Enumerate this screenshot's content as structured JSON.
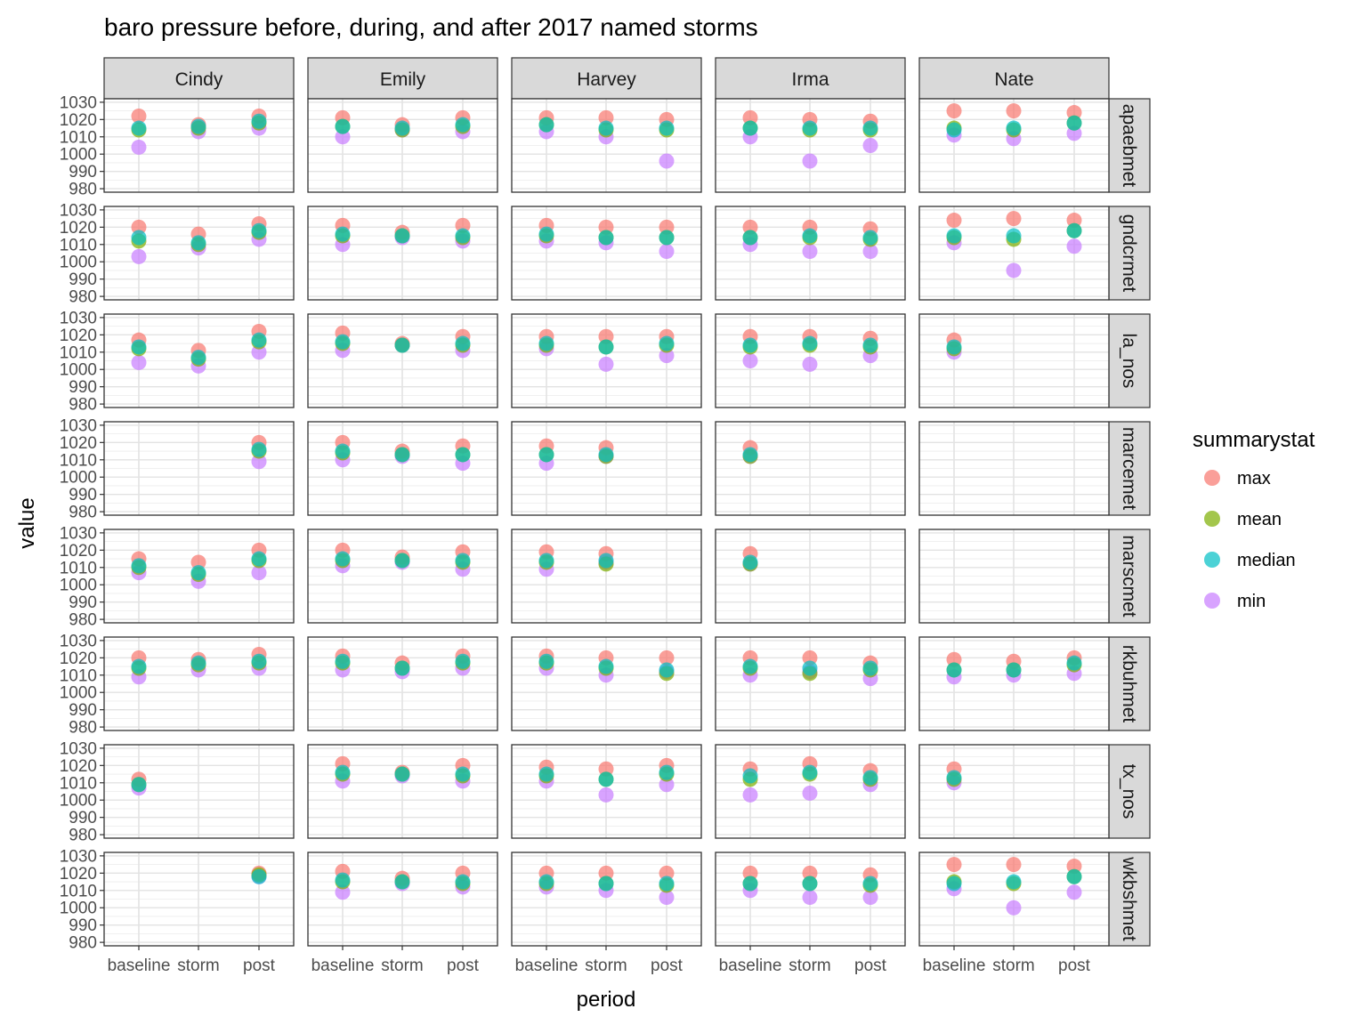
{
  "chart_data": {
    "type": "scatter",
    "title": "baro pressure before, during, and after 2017 named storms",
    "xlabel": "period",
    "ylabel": "value",
    "x_categories": [
      "baseline",
      "storm",
      "post"
    ],
    "y_ticks": [
      980,
      990,
      1000,
      1010,
      1020,
      1030
    ],
    "ylim": [
      978,
      1032
    ],
    "grid": true,
    "legend": {
      "title": "summarystat",
      "placement": "right",
      "entries": [
        {
          "name": "max",
          "color": "#F8766D"
        },
        {
          "name": "mean",
          "color": "#7CAE00"
        },
        {
          "name": "median",
          "color": "#00BFC4"
        },
        {
          "name": "min",
          "color": "#C77CFF"
        }
      ]
    },
    "storms": [
      "Cindy",
      "Emily",
      "Harvey",
      "Irma",
      "Nate"
    ],
    "stations": [
      "apaebmet",
      "gndcrmet",
      "la_nos",
      "marcemet",
      "marscmet",
      "rkbuhmet",
      "tx_nos",
      "wkbshmet"
    ],
    "stat_order": [
      "max",
      "mean",
      "median",
      "min"
    ],
    "values": {
      "apaebmet": {
        "Cindy": [
          [
            1022,
            1014,
            1015,
            1004
          ],
          [
            1017,
            1015,
            1016,
            1013
          ],
          [
            1022,
            1018,
            1019,
            1015
          ]
        ],
        "Emily": [
          [
            1021,
            1016,
            1016,
            1010
          ],
          [
            1017,
            1014,
            1015,
            1014
          ],
          [
            1021,
            1016,
            1017,
            1013
          ]
        ],
        "Harvey": [
          [
            1021,
            1017,
            1017,
            1013
          ],
          [
            1021,
            1014,
            1015,
            1010
          ],
          [
            1020,
            1014,
            1015,
            996
          ]
        ],
        "Irma": [
          [
            1021,
            1015,
            1015,
            1010
          ],
          [
            1020,
            1014,
            1015,
            996
          ],
          [
            1019,
            1014,
            1015,
            1005
          ]
        ],
        "Nate": [
          [
            1025,
            1015,
            1014,
            1011
          ],
          [
            1025,
            1014,
            1015,
            1009
          ],
          [
            1024,
            1018,
            1018,
            1012
          ]
        ]
      },
      "gndcrmet": {
        "Cindy": [
          [
            1020,
            1012,
            1014,
            1003
          ],
          [
            1016,
            1010,
            1011,
            1008
          ],
          [
            1022,
            1017,
            1018,
            1013
          ]
        ],
        "Emily": [
          [
            1021,
            1015,
            1016,
            1010
          ],
          [
            1017,
            1015,
            1015,
            1014
          ],
          [
            1021,
            1014,
            1015,
            1012
          ]
        ],
        "Harvey": [
          [
            1021,
            1015,
            1016,
            1012
          ],
          [
            1020,
            1014,
            1014,
            1011
          ],
          [
            1020,
            1014,
            1014,
            1006
          ]
        ],
        "Irma": [
          [
            1020,
            1014,
            1014,
            1010
          ],
          [
            1020,
            1014,
            1015,
            1006
          ],
          [
            1019,
            1013,
            1014,
            1006
          ]
        ],
        "Nate": [
          [
            1024,
            1014,
            1015,
            1011
          ],
          [
            1025,
            1013,
            1015,
            995
          ],
          [
            1024,
            1018,
            1018,
            1009
          ]
        ]
      },
      "la_nos": {
        "Cindy": [
          [
            1017,
            1012,
            1013,
            1004
          ],
          [
            1011,
            1006,
            1007,
            1002
          ],
          [
            1022,
            1016,
            1017,
            1010
          ]
        ],
        "Emily": [
          [
            1021,
            1015,
            1016,
            1011
          ],
          [
            1015,
            1014,
            1014,
            1014
          ],
          [
            1019,
            1014,
            1015,
            1011
          ]
        ],
        "Harvey": [
          [
            1019,
            1014,
            1015,
            1012
          ],
          [
            1019,
            1013,
            1013,
            1003
          ],
          [
            1019,
            1014,
            1015,
            1008
          ]
        ],
        "Irma": [
          [
            1019,
            1013,
            1014,
            1005
          ],
          [
            1019,
            1014,
            1015,
            1003
          ],
          [
            1018,
            1013,
            1014,
            1008
          ]
        ],
        "Nate": [
          [
            1017,
            1012,
            1013,
            1010
          ],
          null,
          null
        ]
      },
      "marcemet": {
        "Cindy": [
          null,
          null,
          [
            1020,
            1015,
            1016,
            1009
          ]
        ],
        "Emily": [
          [
            1020,
            1014,
            1015,
            1010
          ],
          [
            1015,
            1013,
            1013,
            1012
          ],
          [
            1018,
            1013,
            1013,
            1008
          ]
        ],
        "Harvey": [
          [
            1018,
            1013,
            1013,
            1008
          ],
          [
            1017,
            1012,
            1013,
            1012
          ],
          null
        ],
        "Irma": [
          [
            1017,
            1012,
            1013,
            1012
          ],
          null,
          null
        ],
        "Nate": [
          null,
          null,
          null
        ]
      },
      "marscmet": {
        "Cindy": [
          [
            1015,
            1010,
            1011,
            1007
          ],
          [
            1013,
            1006,
            1007,
            1002
          ],
          [
            1020,
            1014,
            1015,
            1007
          ]
        ],
        "Emily": [
          [
            1020,
            1014,
            1015,
            1011
          ],
          [
            1016,
            1014,
            1014,
            1013
          ],
          [
            1019,
            1013,
            1014,
            1009
          ]
        ],
        "Harvey": [
          [
            1019,
            1013,
            1014,
            1009
          ],
          [
            1018,
            1012,
            1014,
            1013
          ],
          null
        ],
        "Irma": [
          [
            1018,
            1012,
            1013,
            1012
          ],
          null,
          null
        ],
        "Nate": [
          null,
          null,
          null
        ]
      },
      "rkbuhmet": {
        "Cindy": [
          [
            1020,
            1014,
            1015,
            1009
          ],
          [
            1019,
            1016,
            1017,
            1013
          ],
          [
            1022,
            1017,
            1018,
            1014
          ]
        ],
        "Emily": [
          [
            1021,
            1017,
            1018,
            1013
          ],
          [
            1017,
            1014,
            1014,
            1012
          ],
          [
            1021,
            1017,
            1018,
            1014
          ]
        ],
        "Harvey": [
          [
            1021,
            1017,
            1018,
            1014
          ],
          [
            1020,
            1014,
            1015,
            1010
          ],
          [
            1020,
            1011,
            1013,
            1012
          ]
        ],
        "Irma": [
          [
            1020,
            1014,
            1015,
            1010
          ],
          [
            1020,
            1011,
            1014,
            1012
          ],
          [
            1017,
            1013,
            1014,
            1008
          ]
        ],
        "Nate": [
          [
            1019,
            1013,
            1013,
            1009
          ],
          [
            1018,
            1013,
            1013,
            1010
          ],
          [
            1020,
            1016,
            1017,
            1011
          ]
        ]
      },
      "tx_nos": {
        "Cindy": [
          [
            1012,
            1009,
            1009,
            1007
          ],
          null,
          null
        ],
        "Emily": [
          [
            1021,
            1015,
            1016,
            1011
          ],
          [
            1016,
            1015,
            1015,
            1014
          ],
          [
            1020,
            1014,
            1015,
            1011
          ]
        ],
        "Harvey": [
          [
            1019,
            1014,
            1015,
            1011
          ],
          [
            1018,
            1012,
            1012,
            1003
          ],
          [
            1020,
            1015,
            1016,
            1009
          ]
        ],
        "Irma": [
          [
            1018,
            1012,
            1014,
            1003
          ],
          [
            1021,
            1015,
            1016,
            1004
          ],
          [
            1017,
            1012,
            1013,
            1009
          ]
        ],
        "Nate": [
          [
            1018,
            1012,
            1013,
            1010
          ],
          null,
          null
        ]
      },
      "wkbshmet": {
        "Cindy": [
          null,
          null,
          [
            1020,
            1019,
            1018,
            1018
          ]
        ],
        "Emily": [
          [
            1021,
            1015,
            1016,
            1009
          ],
          [
            1017,
            1015,
            1015,
            1014
          ],
          [
            1020,
            1014,
            1015,
            1012
          ]
        ],
        "Harvey": [
          [
            1020,
            1014,
            1015,
            1012
          ],
          [
            1020,
            1014,
            1014,
            1010
          ],
          [
            1020,
            1013,
            1014,
            1006
          ]
        ],
        "Irma": [
          [
            1020,
            1014,
            1014,
            1010
          ],
          [
            1020,
            1014,
            1014,
            1006
          ],
          [
            1019,
            1013,
            1014,
            1006
          ]
        ],
        "Nate": [
          [
            1025,
            1015,
            1014,
            1011
          ],
          [
            1025,
            1014,
            1015,
            1000
          ],
          [
            1024,
            1018,
            1018,
            1009
          ]
        ]
      }
    }
  }
}
